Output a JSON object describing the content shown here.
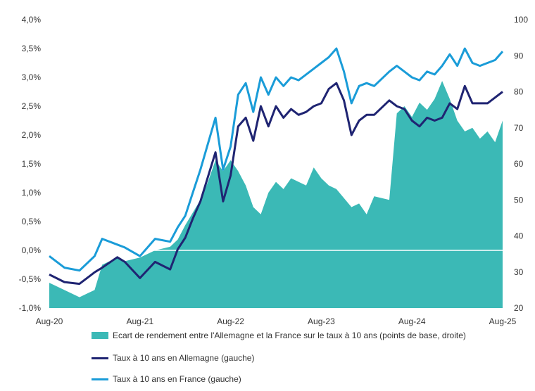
{
  "chart_data": {
    "type": "area",
    "title": "",
    "x_ticks": [
      "Aug-20",
      "Aug-21",
      "Aug-22",
      "Aug-23",
      "Aug-24",
      "Aug-25"
    ],
    "y_left": {
      "ticks": [
        "-1,0%",
        "-0,5%",
        "0,0%",
        "0,5%",
        "1,0%",
        "1,5%",
        "2,0%",
        "2,5%",
        "3,0%",
        "3,5%",
        "4,0%"
      ],
      "range": [
        -1.0,
        4.0
      ]
    },
    "y_right": {
      "ticks": [
        "20",
        "30",
        "40",
        "50",
        "60",
        "70",
        "80",
        "90",
        "100"
      ],
      "range": [
        20,
        100
      ]
    },
    "grid": false,
    "legend_position": "bottom",
    "series": [
      {
        "name": "Ecart de rendement entre l'Allemagne et la France sur le taux à 10 ans (points de base, droite)",
        "type": "area",
        "axis": "right",
        "color": "#3bb9b6",
        "points": [
          [
            "2020-08",
            27
          ],
          [
            "2020-10",
            25
          ],
          [
            "2020-12",
            23
          ],
          [
            "2021-02",
            25
          ],
          [
            "2021-03",
            32
          ],
          [
            "2021-05",
            34
          ],
          [
            "2021-06",
            33
          ],
          [
            "2021-08",
            34
          ],
          [
            "2021-10",
            36
          ],
          [
            "2021-12",
            37
          ],
          [
            "2022-01",
            39
          ],
          [
            "2022-02",
            43
          ],
          [
            "2022-04",
            50
          ],
          [
            "2022-05",
            55
          ],
          [
            "2022-06",
            61
          ],
          [
            "2022-07",
            58
          ],
          [
            "2022-08",
            61
          ],
          [
            "2022-09",
            58
          ],
          [
            "2022-10",
            54
          ],
          [
            "2022-11",
            48
          ],
          [
            "2022-12",
            46
          ],
          [
            "2023-01",
            52
          ],
          [
            "2023-02",
            55
          ],
          [
            "2023-03",
            53
          ],
          [
            "2023-04",
            56
          ],
          [
            "2023-05",
            55
          ],
          [
            "2023-06",
            54
          ],
          [
            "2023-07",
            59
          ],
          [
            "2023-08",
            56
          ],
          [
            "2023-09",
            54
          ],
          [
            "2023-10",
            53
          ],
          [
            "2023-12",
            48
          ],
          [
            "2024-01",
            49
          ],
          [
            "2024-02",
            46
          ],
          [
            "2024-03",
            51
          ],
          [
            "2024-05",
            50
          ],
          [
            "2024-06",
            74
          ],
          [
            "2024-07",
            76
          ],
          [
            "2024-08",
            73
          ],
          [
            "2024-09",
            77
          ],
          [
            "2024-10",
            75
          ],
          [
            "2024-11",
            78
          ],
          [
            "2024-12",
            83
          ],
          [
            "2025-01",
            78
          ],
          [
            "2025-02",
            72
          ],
          [
            "2025-03",
            69
          ],
          [
            "2025-04",
            70
          ],
          [
            "2025-05",
            67
          ],
          [
            "2025-06",
            69
          ],
          [
            "2025-07",
            66
          ],
          [
            "2025-08",
            72
          ]
        ]
      },
      {
        "name": "Taux à 10 ans en Allemagne (gauche)",
        "type": "line",
        "axis": "left",
        "color": "#1f2472",
        "points": [
          [
            "2020-08",
            -0.42
          ],
          [
            "2020-10",
            -0.55
          ],
          [
            "2020-12",
            -0.58
          ],
          [
            "2021-02",
            -0.38
          ],
          [
            "2021-03",
            -0.3
          ],
          [
            "2021-05",
            -0.12
          ],
          [
            "2021-06",
            -0.2
          ],
          [
            "2021-08",
            -0.48
          ],
          [
            "2021-10",
            -0.2
          ],
          [
            "2021-12",
            -0.33
          ],
          [
            "2022-01",
            0.02
          ],
          [
            "2022-02",
            0.22
          ],
          [
            "2022-03",
            0.55
          ],
          [
            "2022-04",
            0.85
          ],
          [
            "2022-06",
            1.7
          ],
          [
            "2022-07",
            0.85
          ],
          [
            "2022-08",
            1.3
          ],
          [
            "2022-09",
            2.15
          ],
          [
            "2022-10",
            2.3
          ],
          [
            "2022-11",
            1.9
          ],
          [
            "2022-12",
            2.5
          ],
          [
            "2023-01",
            2.15
          ],
          [
            "2023-02",
            2.5
          ],
          [
            "2023-03",
            2.3
          ],
          [
            "2023-04",
            2.45
          ],
          [
            "2023-05",
            2.35
          ],
          [
            "2023-06",
            2.4
          ],
          [
            "2023-07",
            2.5
          ],
          [
            "2023-08",
            2.55
          ],
          [
            "2023-09",
            2.8
          ],
          [
            "2023-10",
            2.9
          ],
          [
            "2023-11",
            2.6
          ],
          [
            "2023-12",
            2.0
          ],
          [
            "2024-01",
            2.25
          ],
          [
            "2024-02",
            2.35
          ],
          [
            "2024-03",
            2.35
          ],
          [
            "2024-05",
            2.6
          ],
          [
            "2024-06",
            2.5
          ],
          [
            "2024-07",
            2.45
          ],
          [
            "2024-08",
            2.25
          ],
          [
            "2024-09",
            2.15
          ],
          [
            "2024-10",
            2.3
          ],
          [
            "2024-11",
            2.25
          ],
          [
            "2024-12",
            2.3
          ],
          [
            "2025-01",
            2.55
          ],
          [
            "2025-02",
            2.45
          ],
          [
            "2025-03",
            2.85
          ],
          [
            "2025-04",
            2.55
          ],
          [
            "2025-05",
            2.55
          ],
          [
            "2025-06",
            2.55
          ],
          [
            "2025-07",
            2.65
          ],
          [
            "2025-08",
            2.75
          ]
        ]
      },
      {
        "name": "Taux à 10 ans en France (gauche)",
        "type": "line",
        "axis": "left",
        "color": "#1a9cd8",
        "points": [
          [
            "2020-08",
            -0.1
          ],
          [
            "2020-10",
            -0.3
          ],
          [
            "2020-12",
            -0.35
          ],
          [
            "2021-02",
            -0.1
          ],
          [
            "2021-03",
            0.2
          ],
          [
            "2021-05",
            0.1
          ],
          [
            "2021-06",
            0.05
          ],
          [
            "2021-08",
            -0.1
          ],
          [
            "2021-10",
            0.2
          ],
          [
            "2021-12",
            0.15
          ],
          [
            "2022-01",
            0.4
          ],
          [
            "2022-02",
            0.6
          ],
          [
            "2022-03",
            1.0
          ],
          [
            "2022-04",
            1.4
          ],
          [
            "2022-06",
            2.3
          ],
          [
            "2022-07",
            1.4
          ],
          [
            "2022-08",
            1.8
          ],
          [
            "2022-09",
            2.7
          ],
          [
            "2022-10",
            2.9
          ],
          [
            "2022-11",
            2.4
          ],
          [
            "2022-12",
            3.0
          ],
          [
            "2023-01",
            2.7
          ],
          [
            "2023-02",
            3.0
          ],
          [
            "2023-03",
            2.85
          ],
          [
            "2023-04",
            3.0
          ],
          [
            "2023-05",
            2.95
          ],
          [
            "2023-06",
            3.05
          ],
          [
            "2023-07",
            3.15
          ],
          [
            "2023-08",
            3.25
          ],
          [
            "2023-09",
            3.35
          ],
          [
            "2023-10",
            3.5
          ],
          [
            "2023-11",
            3.1
          ],
          [
            "2023-12",
            2.55
          ],
          [
            "2024-01",
            2.85
          ],
          [
            "2024-02",
            2.9
          ],
          [
            "2024-03",
            2.85
          ],
          [
            "2024-05",
            3.1
          ],
          [
            "2024-06",
            3.2
          ],
          [
            "2024-07",
            3.1
          ],
          [
            "2024-08",
            3.0
          ],
          [
            "2024-09",
            2.95
          ],
          [
            "2024-10",
            3.1
          ],
          [
            "2024-11",
            3.05
          ],
          [
            "2024-12",
            3.2
          ],
          [
            "2025-01",
            3.4
          ],
          [
            "2025-02",
            3.2
          ],
          [
            "2025-03",
            3.5
          ],
          [
            "2025-04",
            3.25
          ],
          [
            "2025-05",
            3.2
          ],
          [
            "2025-06",
            3.25
          ],
          [
            "2025-07",
            3.3
          ],
          [
            "2025-08",
            3.45
          ]
        ]
      }
    ]
  }
}
